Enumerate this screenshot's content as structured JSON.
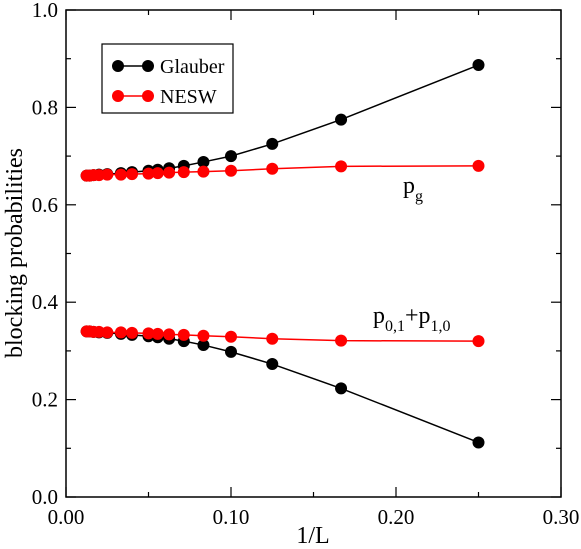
{
  "chart_data": {
    "type": "line",
    "xlabel": "1/L",
    "ylabel": "blocking probabilities",
    "xlim": [
      0.0,
      0.3
    ],
    "ylim": [
      0.0,
      1.0
    ],
    "x_ticks": [
      "0.00",
      "0.10",
      "0.20",
      "0.30"
    ],
    "y_ticks": [
      "0.0",
      "0.2",
      "0.4",
      "0.6",
      "0.8",
      "1.0"
    ],
    "grid": false,
    "legend_position": "top-left",
    "series": [
      {
        "name": "Glauber",
        "color": "#000000",
        "group": "pg",
        "points": [
          [
            0.0125,
            0.66
          ],
          [
            0.0143,
            0.66
          ],
          [
            0.0167,
            0.661
          ],
          [
            0.02,
            0.662
          ],
          [
            0.025,
            0.663
          ],
          [
            0.0333,
            0.665
          ],
          [
            0.04,
            0.667
          ],
          [
            0.05,
            0.67
          ],
          [
            0.0556,
            0.672
          ],
          [
            0.0625,
            0.675
          ],
          [
            0.0714,
            0.68
          ],
          [
            0.0833,
            0.688
          ],
          [
            0.1,
            0.7
          ],
          [
            0.125,
            0.725
          ],
          [
            0.1667,
            0.775
          ],
          [
            0.25,
            0.887
          ]
        ]
      },
      {
        "name": "NESW",
        "color": "#ff0000",
        "group": "pg",
        "points": [
          [
            0.0125,
            0.66
          ],
          [
            0.0143,
            0.66
          ],
          [
            0.0167,
            0.661
          ],
          [
            0.02,
            0.661
          ],
          [
            0.025,
            0.662
          ],
          [
            0.0333,
            0.662
          ],
          [
            0.04,
            0.663
          ],
          [
            0.05,
            0.664
          ],
          [
            0.0556,
            0.665
          ],
          [
            0.0625,
            0.666
          ],
          [
            0.0714,
            0.667
          ],
          [
            0.0833,
            0.668
          ],
          [
            0.1,
            0.67
          ],
          [
            0.125,
            0.674
          ],
          [
            0.1667,
            0.679
          ],
          [
            0.25,
            0.68
          ]
        ]
      },
      {
        "name": "Glauber",
        "color": "#000000",
        "group": "p01p10",
        "points": [
          [
            0.0125,
            0.34
          ],
          [
            0.0143,
            0.34
          ],
          [
            0.0167,
            0.339
          ],
          [
            0.02,
            0.338
          ],
          [
            0.025,
            0.337
          ],
          [
            0.0333,
            0.335
          ],
          [
            0.04,
            0.333
          ],
          [
            0.05,
            0.33
          ],
          [
            0.0556,
            0.328
          ],
          [
            0.0625,
            0.325
          ],
          [
            0.0714,
            0.32
          ],
          [
            0.0833,
            0.312
          ],
          [
            0.1,
            0.298
          ],
          [
            0.125,
            0.273
          ],
          [
            0.1667,
            0.223
          ],
          [
            0.25,
            0.112
          ]
        ]
      },
      {
        "name": "NESW",
        "color": "#ff0000",
        "group": "p01p10",
        "points": [
          [
            0.0125,
            0.34
          ],
          [
            0.0143,
            0.34
          ],
          [
            0.0167,
            0.339
          ],
          [
            0.02,
            0.339
          ],
          [
            0.025,
            0.338
          ],
          [
            0.0333,
            0.338
          ],
          [
            0.04,
            0.337
          ],
          [
            0.05,
            0.336
          ],
          [
            0.0556,
            0.335
          ],
          [
            0.0625,
            0.334
          ],
          [
            0.0714,
            0.333
          ],
          [
            0.0833,
            0.331
          ],
          [
            0.1,
            0.329
          ],
          [
            0.125,
            0.325
          ],
          [
            0.1667,
            0.321
          ],
          [
            0.25,
            0.32
          ]
        ]
      }
    ],
    "legend": [
      {
        "label": "Glauber",
        "color": "#000000"
      },
      {
        "label": "NESW",
        "color": "#ff0000"
      }
    ],
    "annotations": {
      "pg": {
        "base": "p",
        "sub": "g"
      },
      "p01p10": {
        "base1": "p",
        "sub1": "0,1",
        "plus": "+",
        "base2": "p",
        "sub2": "1,0"
      }
    }
  }
}
